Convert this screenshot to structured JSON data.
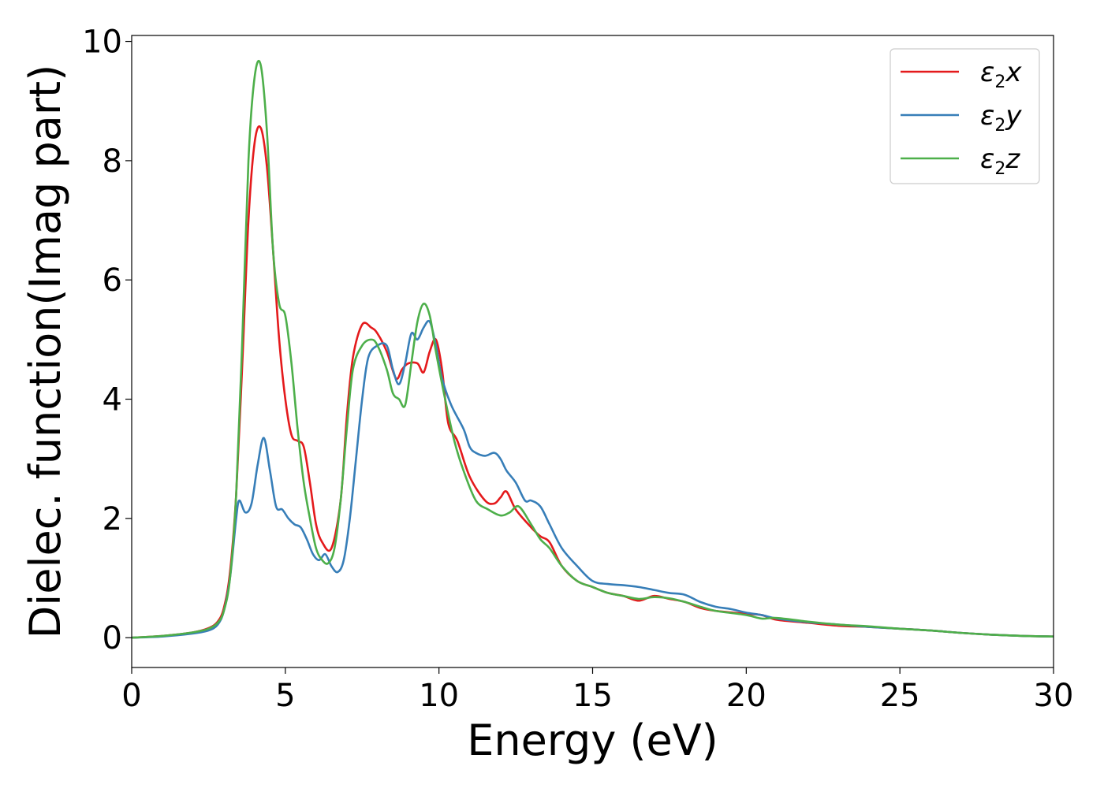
{
  "chart_data": {
    "type": "line",
    "title": "",
    "xlabel": "Energy (eV)",
    "ylabel": "Dielec. function(Imag part)",
    "xlim": [
      0,
      30
    ],
    "ylim": [
      -0.5,
      10.1
    ],
    "xticks": [
      0,
      5,
      10,
      15,
      20,
      25,
      30
    ],
    "xtick_labels": [
      "0",
      "5",
      "10",
      "15",
      "20",
      "25",
      "30"
    ],
    "yticks": [
      0,
      2,
      4,
      6,
      8,
      10
    ],
    "ytick_labels": [
      "0",
      "2",
      "4",
      "6",
      "8",
      "10"
    ],
    "grid": false,
    "legend_position": "top-right",
    "series": [
      {
        "name": "ε2x",
        "label_main": "ε",
        "label_sub": "2",
        "label_tail": "x",
        "color": "#e41a1c",
        "x": [
          0,
          1,
          2,
          2.5,
          2.8,
          3.0,
          3.2,
          3.4,
          3.6,
          3.8,
          4.0,
          4.2,
          4.4,
          4.6,
          4.8,
          5.0,
          5.2,
          5.4,
          5.6,
          5.8,
          6.0,
          6.2,
          6.5,
          6.8,
          7.0,
          7.2,
          7.5,
          7.8,
          8.0,
          8.3,
          8.6,
          8.8,
          9.0,
          9.3,
          9.5,
          9.7,
          9.9,
          10.1,
          10.3,
          10.6,
          11.0,
          11.5,
          11.8,
          12.0,
          12.2,
          12.5,
          13.0,
          13.3,
          13.6,
          14.0,
          14.5,
          15.0,
          15.5,
          16.0,
          16.5,
          17.0,
          17.5,
          18.0,
          18.5,
          19.0,
          20.0,
          20.5,
          21.0,
          22.0,
          23.0,
          24.0,
          25.0,
          26.0,
          27.0,
          28.0,
          29.0,
          30.0
        ],
        "y": [
          0.0,
          0.03,
          0.09,
          0.16,
          0.27,
          0.5,
          1.1,
          2.4,
          4.6,
          7.0,
          8.3,
          8.55,
          7.9,
          6.5,
          5.0,
          4.0,
          3.4,
          3.3,
          3.2,
          2.6,
          1.9,
          1.6,
          1.5,
          2.3,
          3.7,
          4.7,
          5.25,
          5.2,
          5.1,
          4.8,
          4.35,
          4.5,
          4.6,
          4.6,
          4.45,
          4.8,
          5.0,
          4.5,
          3.6,
          3.3,
          2.7,
          2.3,
          2.25,
          2.35,
          2.45,
          2.15,
          1.85,
          1.7,
          1.6,
          1.2,
          0.95,
          0.85,
          0.75,
          0.7,
          0.62,
          0.7,
          0.65,
          0.6,
          0.5,
          0.45,
          0.4,
          0.38,
          0.3,
          0.25,
          0.2,
          0.18,
          0.15,
          0.12,
          0.08,
          0.05,
          0.03,
          0.02
        ]
      },
      {
        "name": "ε2y",
        "label_main": "ε",
        "label_sub": "2",
        "label_tail": "y",
        "color": "#377eb8",
        "x": [
          0,
          1,
          2,
          2.5,
          2.8,
          3.0,
          3.2,
          3.4,
          3.5,
          3.7,
          3.9,
          4.1,
          4.3,
          4.5,
          4.7,
          4.9,
          5.1,
          5.3,
          5.5,
          5.7,
          5.9,
          6.1,
          6.3,
          6.5,
          6.7,
          6.9,
          7.1,
          7.3,
          7.5,
          7.7,
          8.0,
          8.3,
          8.5,
          8.7,
          8.9,
          9.1,
          9.3,
          9.5,
          9.7,
          9.9,
          10.1,
          10.4,
          10.8,
          11.0,
          11.2,
          11.5,
          11.8,
          12.0,
          12.2,
          12.5,
          12.8,
          13.0,
          13.3,
          13.6,
          14.0,
          14.5,
          15.0,
          15.5,
          16.0,
          16.5,
          17.0,
          17.5,
          18.0,
          18.5,
          19.0,
          19.5,
          20.0,
          20.5,
          21.0,
          22.0,
          23.0,
          24.0,
          25.0,
          26.0,
          27.0,
          28.0,
          29.0,
          30.0
        ],
        "y": [
          0.0,
          0.02,
          0.07,
          0.12,
          0.22,
          0.45,
          1.0,
          2.0,
          2.3,
          2.1,
          2.25,
          2.9,
          3.35,
          2.8,
          2.2,
          2.15,
          2.0,
          1.9,
          1.85,
          1.65,
          1.4,
          1.3,
          1.4,
          1.2,
          1.1,
          1.3,
          2.0,
          3.0,
          4.0,
          4.7,
          4.9,
          4.9,
          4.5,
          4.25,
          4.6,
          5.1,
          5.0,
          5.2,
          5.3,
          4.9,
          4.35,
          3.9,
          3.5,
          3.2,
          3.1,
          3.05,
          3.1,
          3.0,
          2.8,
          2.6,
          2.3,
          2.3,
          2.2,
          1.9,
          1.5,
          1.2,
          0.95,
          0.9,
          0.88,
          0.85,
          0.8,
          0.75,
          0.72,
          0.6,
          0.52,
          0.48,
          0.42,
          0.38,
          0.32,
          0.26,
          0.22,
          0.18,
          0.15,
          0.12,
          0.08,
          0.05,
          0.03,
          0.02
        ]
      },
      {
        "name": "ε2z",
        "label_main": "ε",
        "label_sub": "2",
        "label_tail": "z",
        "color": "#4daf4a",
        "x": [
          0,
          1,
          2,
          2.5,
          2.8,
          3.0,
          3.2,
          3.4,
          3.6,
          3.8,
          4.0,
          4.2,
          4.4,
          4.6,
          4.8,
          5.0,
          5.2,
          5.4,
          5.6,
          5.8,
          6.0,
          6.2,
          6.4,
          6.6,
          6.8,
          7.0,
          7.2,
          7.5,
          7.8,
          8.0,
          8.3,
          8.5,
          8.7,
          8.9,
          9.1,
          9.3,
          9.5,
          9.7,
          9.9,
          10.2,
          10.5,
          10.8,
          11.2,
          11.6,
          12.0,
          12.3,
          12.6,
          13.0,
          13.3,
          13.6,
          14.0,
          14.5,
          15.0,
          15.5,
          16.0,
          16.5,
          17.0,
          17.5,
          18.0,
          18.5,
          19.0,
          20.0,
          20.5,
          21.0,
          22.0,
          23.0,
          24.0,
          25.0,
          26.0,
          27.0,
          28.0,
          29.0,
          30.0
        ],
        "y": [
          0.0,
          0.03,
          0.09,
          0.15,
          0.25,
          0.45,
          1.0,
          2.4,
          5.0,
          8.0,
          9.4,
          9.6,
          8.5,
          6.5,
          5.6,
          5.4,
          4.6,
          3.5,
          2.6,
          2.0,
          1.5,
          1.3,
          1.25,
          1.5,
          2.3,
          3.5,
          4.5,
          4.9,
          5.0,
          4.9,
          4.5,
          4.1,
          4.0,
          3.9,
          4.6,
          5.3,
          5.6,
          5.4,
          4.8,
          4.0,
          3.3,
          2.8,
          2.3,
          2.15,
          2.05,
          2.1,
          2.2,
          1.9,
          1.65,
          1.5,
          1.2,
          0.95,
          0.85,
          0.75,
          0.7,
          0.65,
          0.68,
          0.66,
          0.6,
          0.52,
          0.45,
          0.38,
          0.32,
          0.33,
          0.27,
          0.22,
          0.19,
          0.15,
          0.12,
          0.08,
          0.05,
          0.03,
          0.02
        ]
      }
    ]
  }
}
